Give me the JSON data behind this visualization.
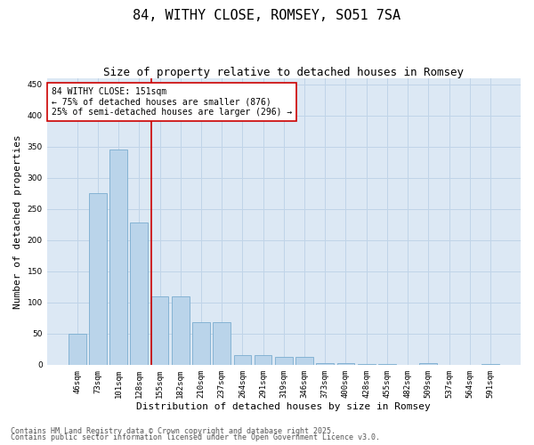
{
  "title": "84, WITHY CLOSE, ROMSEY, SO51 7SA",
  "subtitle": "Size of property relative to detached houses in Romsey",
  "xlabel": "Distribution of detached houses by size in Romsey",
  "ylabel": "Number of detached properties",
  "categories": [
    "46sqm",
    "73sqm",
    "101sqm",
    "128sqm",
    "155sqm",
    "182sqm",
    "210sqm",
    "237sqm",
    "264sqm",
    "291sqm",
    "319sqm",
    "346sqm",
    "373sqm",
    "400sqm",
    "428sqm",
    "455sqm",
    "482sqm",
    "509sqm",
    "537sqm",
    "564sqm",
    "591sqm"
  ],
  "values": [
    50,
    275,
    345,
    228,
    110,
    110,
    68,
    68,
    15,
    15,
    12,
    12,
    2,
    2,
    1,
    1,
    0,
    2,
    0,
    0,
    1
  ],
  "bar_color": "#bad4ea",
  "bar_edgecolor": "#7aadcf",
  "vline_color": "#cc0000",
  "vline_pos": 3.57,
  "annotation_text": "84 WITHY CLOSE: 151sqm\n← 75% of detached houses are smaller (876)\n25% of semi-detached houses are larger (296) →",
  "annotation_box_facecolor": "#ffffff",
  "annotation_box_edgecolor": "#cc0000",
  "ylim": [
    0,
    460
  ],
  "yticks": [
    0,
    50,
    100,
    150,
    200,
    250,
    300,
    350,
    400,
    450
  ],
  "grid_color": "#c0d4e8",
  "bg_color": "#dce8f4",
  "footer1": "Contains HM Land Registry data © Crown copyright and database right 2025.",
  "footer2": "Contains public sector information licensed under the Open Government Licence v3.0.",
  "title_fontsize": 11,
  "subtitle_fontsize": 9,
  "axis_label_fontsize": 8,
  "tick_fontsize": 6.5,
  "annotation_fontsize": 7,
  "footer_fontsize": 6
}
